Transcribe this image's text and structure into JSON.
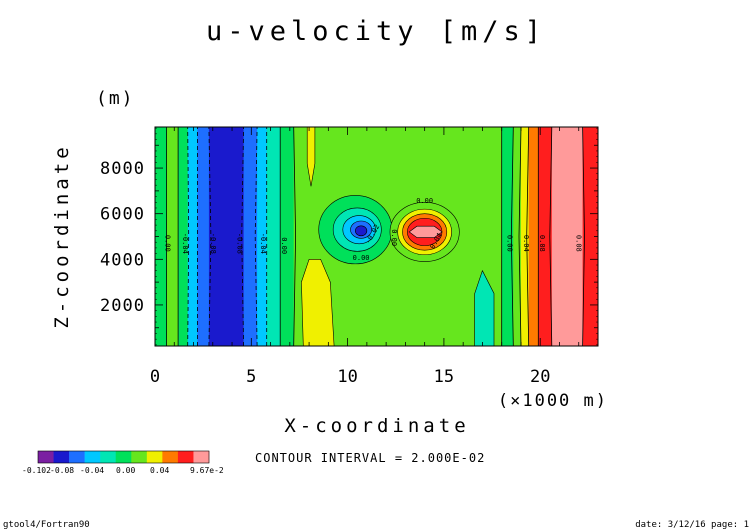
{
  "chart_data": {
    "type": "contour",
    "title": "u-velocity [m/s]",
    "xlabel": "X-coordinate",
    "ylabel": "Z-coordinate",
    "x_unit": "(×1000 m)",
    "y_unit": "(m)",
    "xlim": [
      0,
      23
    ],
    "ylim": [
      200,
      9800
    ],
    "x_ticks": [
      0,
      5,
      10,
      15,
      20
    ],
    "x_tick_labels": [
      "0",
      "5",
      "10",
      "15",
      "20"
    ],
    "y_ticks": [
      2000,
      4000,
      6000,
      8000
    ],
    "y_tick_labels": [
      "2000",
      "4000",
      "6000",
      "8000"
    ],
    "contour_interval_text": "CONTOUR INTERVAL = 2.000E-02",
    "colorbar": {
      "levels": [
        -0.102,
        -0.08,
        -0.06,
        -0.04,
        -0.02,
        0.0,
        0.02,
        0.04,
        0.06,
        0.08,
        0.0967
      ],
      "colors": [
        "#7b1fa2",
        "#1a1acd",
        "#1e6fff",
        "#00c8ff",
        "#00e6b4",
        "#00e05a",
        "#66e61e",
        "#f0f000",
        "#ff7a00",
        "#ff1e1e",
        "#ff9a9a"
      ],
      "tick_labels": [
        "-0.102",
        "-0.08",
        "-0.04",
        "0.00",
        "0.04",
        "9.67e-2"
      ]
    },
    "bands": [
      {
        "x0": 0.0,
        "x1": 0.6,
        "color": "#00e05a"
      },
      {
        "x0": 0.6,
        "x1": 1.2,
        "color": "#66e61e"
      },
      {
        "x0": 1.2,
        "x1": 1.7,
        "color": "#00e05a"
      },
      {
        "x0": 1.7,
        "x1": 2.2,
        "color": "#00c8ff"
      },
      {
        "x0": 2.2,
        "x1": 2.8,
        "color": "#1e6fff"
      },
      {
        "x0": 2.8,
        "x1": 4.6,
        "color": "#1a1acd"
      },
      {
        "x0": 4.6,
        "x1": 5.3,
        "color": "#1e6fff"
      },
      {
        "x0": 5.3,
        "x1": 5.8,
        "color": "#00c8ff"
      },
      {
        "x0": 5.8,
        "x1": 6.5,
        "color": "#00e6b4"
      },
      {
        "x0": 6.5,
        "x1": 7.2,
        "color": "#00e05a"
      },
      {
        "x0": 7.2,
        "x1": 18.0,
        "color": "#66e61e"
      },
      {
        "x0": 18.0,
        "x1": 18.6,
        "color": "#00e05a"
      },
      {
        "x0": 18.6,
        "x1": 19.0,
        "color": "#66e61e"
      },
      {
        "x0": 19.0,
        "x1": 19.4,
        "color": "#f0f000"
      },
      {
        "x0": 19.4,
        "x1": 19.9,
        "color": "#ff7a00"
      },
      {
        "x0": 19.9,
        "x1": 20.6,
        "color": "#ff1e1e"
      },
      {
        "x0": 20.6,
        "x1": 22.2,
        "color": "#ff9a9a"
      },
      {
        "x0": 22.2,
        "x1": 23.0,
        "color": "#ff1e1e"
      }
    ],
    "features": [
      {
        "kind": "poly",
        "color": "#f0f000",
        "points": [
          [
            7.7,
            200
          ],
          [
            7.6,
            3000
          ],
          [
            8.0,
            4000
          ],
          [
            8.6,
            4000
          ],
          [
            9.1,
            3000
          ],
          [
            9.3,
            200
          ]
        ]
      },
      {
        "kind": "poly",
        "color": "#f0f000",
        "points": [
          [
            7.9,
            9800
          ],
          [
            7.9,
            8200
          ],
          [
            8.1,
            7200
          ],
          [
            8.3,
            8200
          ],
          [
            8.3,
            9800
          ]
        ]
      },
      {
        "kind": "poly",
        "color": "#00e6b4",
        "points": [
          [
            16.6,
            200
          ],
          [
            16.6,
            2500
          ],
          [
            17.0,
            3500
          ],
          [
            17.6,
            2500
          ],
          [
            17.6,
            200
          ]
        ]
      },
      {
        "kind": "ellipse",
        "cx": 10.4,
        "cy": 5300,
        "rx": 1.9,
        "ry": 1500,
        "color": "#00e05a"
      },
      {
        "kind": "ellipse",
        "cx": 10.5,
        "cy": 5300,
        "rx": 1.25,
        "ry": 950,
        "color": "#00e6b4"
      },
      {
        "kind": "ellipse",
        "cx": 10.6,
        "cy": 5300,
        "rx": 0.85,
        "ry": 620,
        "color": "#00c8ff"
      },
      {
        "kind": "ellipse",
        "cx": 10.7,
        "cy": 5300,
        "rx": 0.55,
        "ry": 380,
        "color": "#1e6fff"
      },
      {
        "kind": "ellipse",
        "cx": 10.7,
        "cy": 5250,
        "rx": 0.3,
        "ry": 220,
        "color": "#1a1acd"
      },
      {
        "kind": "ellipse",
        "cx": 14.0,
        "cy": 5200,
        "rx": 1.8,
        "ry": 1300,
        "color": "#66e61e"
      },
      {
        "kind": "ellipse",
        "cx": 14.0,
        "cy": 5200,
        "rx": 1.4,
        "ry": 1000,
        "color": "#f0f000"
      },
      {
        "kind": "ellipse",
        "cx": 14.0,
        "cy": 5200,
        "rx": 1.15,
        "ry": 800,
        "color": "#ff7a00"
      },
      {
        "kind": "ellipse",
        "cx": 14.0,
        "cy": 5200,
        "rx": 0.9,
        "ry": 600,
        "color": "#ff1e1e"
      },
      {
        "kind": "poly",
        "color": "#ff9a9a",
        "points": [
          [
            13.2,
            5200
          ],
          [
            13.6,
            5450
          ],
          [
            14.5,
            5450
          ],
          [
            14.9,
            5200
          ],
          [
            14.5,
            4950
          ],
          [
            13.6,
            4950
          ]
        ]
      }
    ],
    "contour_lines": [
      {
        "type": "solid",
        "points": [
          [
            0.6,
            200
          ],
          [
            0.6,
            9800
          ]
        ]
      },
      {
        "type": "solid",
        "points": [
          [
            1.2,
            200
          ],
          [
            1.2,
            9800
          ]
        ]
      },
      {
        "type": "dashed",
        "points": [
          [
            1.7,
            200
          ],
          [
            1.75,
            5000
          ],
          [
            1.7,
            9800
          ]
        ]
      },
      {
        "type": "dashed",
        "points": [
          [
            2.2,
            200
          ],
          [
            2.2,
            9800
          ]
        ]
      },
      {
        "type": "dashed",
        "points": [
          [
            2.8,
            200
          ],
          [
            2.9,
            5000
          ],
          [
            2.8,
            9800
          ]
        ]
      },
      {
        "type": "dashed",
        "points": [
          [
            4.6,
            200
          ],
          [
            4.5,
            5000
          ],
          [
            4.6,
            9800
          ]
        ]
      },
      {
        "type": "dashed",
        "points": [
          [
            5.3,
            200
          ],
          [
            5.2,
            5000
          ],
          [
            5.3,
            9800
          ]
        ]
      },
      {
        "type": "dashed",
        "points": [
          [
            5.8,
            200
          ],
          [
            5.8,
            9800
          ]
        ]
      },
      {
        "type": "solid",
        "points": [
          [
            6.5,
            200
          ],
          [
            6.5,
            9800
          ]
        ]
      },
      {
        "type": "solid",
        "points": [
          [
            7.2,
            200
          ],
          [
            7.3,
            5000
          ],
          [
            7.2,
            9800
          ]
        ]
      },
      {
        "type": "solid",
        "points": [
          [
            18.0,
            200
          ],
          [
            18.0,
            9800
          ]
        ]
      },
      {
        "type": "solid",
        "points": [
          [
            18.6,
            200
          ],
          [
            18.5,
            5000
          ],
          [
            18.6,
            9800
          ]
        ]
      },
      {
        "type": "solid",
        "points": [
          [
            19.0,
            200
          ],
          [
            18.9,
            5000
          ],
          [
            19.0,
            9800
          ]
        ]
      },
      {
        "type": "solid",
        "points": [
          [
            19.4,
            200
          ],
          [
            19.3,
            5000
          ],
          [
            19.4,
            9800
          ]
        ]
      },
      {
        "type": "solid",
        "points": [
          [
            19.9,
            200
          ],
          [
            19.9,
            9800
          ]
        ]
      },
      {
        "type": "solid",
        "points": [
          [
            20.6,
            200
          ],
          [
            20.5,
            5000
          ],
          [
            20.6,
            9800
          ]
        ]
      },
      {
        "type": "solid",
        "points": [
          [
            22.2,
            200
          ],
          [
            22.3,
            5000
          ],
          [
            22.2,
            9800
          ]
        ]
      }
    ],
    "contour_labels": [
      {
        "x": 0.65,
        "y": 4700,
        "text": "0.00",
        "rotate": 90
      },
      {
        "x": 1.55,
        "y": 4700,
        "text": "-0.04",
        "rotate": 90
      },
      {
        "x": 3.0,
        "y": 4700,
        "text": "-0.08",
        "rotate": 90
      },
      {
        "x": 4.4,
        "y": 4700,
        "text": "-0.08",
        "rotate": 90
      },
      {
        "x": 5.6,
        "y": 4700,
        "text": "-0.04",
        "rotate": 90
      },
      {
        "x": 6.7,
        "y": 4600,
        "text": "0.00",
        "rotate": 90
      },
      {
        "x": 11.3,
        "y": 5100,
        "text": "-0.02",
        "rotate": -60
      },
      {
        "x": 10.7,
        "y": 4050,
        "text": "0.00",
        "rotate": 0
      },
      {
        "x": 12.4,
        "y": 4950,
        "text": "0.00",
        "rotate": 90
      },
      {
        "x": 14.6,
        "y": 4800,
        "text": "0.04",
        "rotate": -60
      },
      {
        "x": 14.0,
        "y": 6550,
        "text": "0.00",
        "rotate": 0
      },
      {
        "x": 18.4,
        "y": 4700,
        "text": "0.00",
        "rotate": 90
      },
      {
        "x": 19.25,
        "y": 4700,
        "text": "0.04",
        "rotate": 90
      },
      {
        "x": 20.1,
        "y": 4700,
        "text": "0.08",
        "rotate": 90
      },
      {
        "x": 22.0,
        "y": 4700,
        "text": "0.08",
        "rotate": 90
      }
    ]
  },
  "footer": {
    "left": "gtool4/Fortran90",
    "right": "date: 3/12/16 page: 1"
  }
}
